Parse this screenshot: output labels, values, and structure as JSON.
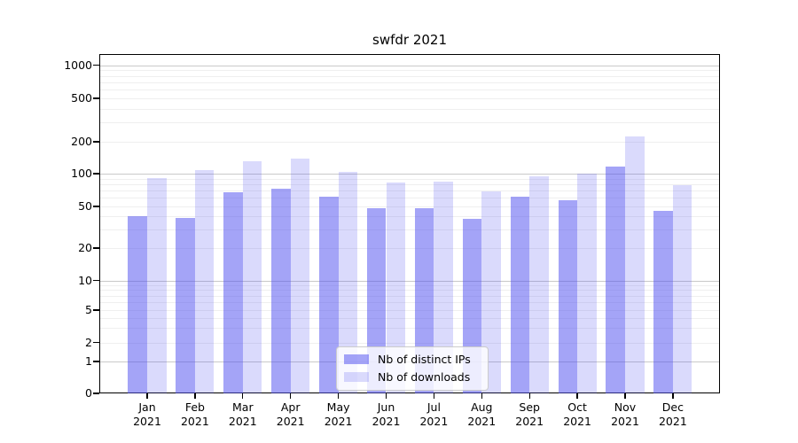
{
  "chart_data": {
    "type": "bar",
    "title": "swfdr 2021",
    "categories": [
      "Jan",
      "Feb",
      "Mar",
      "Apr",
      "May",
      "Jun",
      "Jul",
      "Aug",
      "Sep",
      "Oct",
      "Nov",
      "Dec"
    ],
    "year_label": "2021",
    "series": [
      {
        "name": "Nb of distinct IPs",
        "color": "rgba(80,80,240,0.52)",
        "values": [
          40,
          39,
          68,
          73,
          62,
          48,
          48,
          38,
          62,
          57,
          116,
          45
        ]
      },
      {
        "name": "Nb of downloads",
        "color": "rgba(80,80,240,0.21)",
        "values": [
          91,
          108,
          132,
          138,
          103,
          83,
          84,
          69,
          95,
          100,
          225,
          78
        ]
      }
    ],
    "yticks": [
      0,
      1,
      2,
      5,
      10,
      20,
      50,
      100,
      200,
      500,
      1000
    ],
    "yscale": "symlog",
    "ylim": [
      0,
      1300
    ],
    "xlabel": "",
    "ylabel": "",
    "grid": "horizontal major+minor",
    "legend_position": "lower center",
    "axis_color": "#000000",
    "major_grid_color": "#c9c9c9",
    "minor_grid_color": "#efefef",
    "background_color": "#ffffff"
  }
}
